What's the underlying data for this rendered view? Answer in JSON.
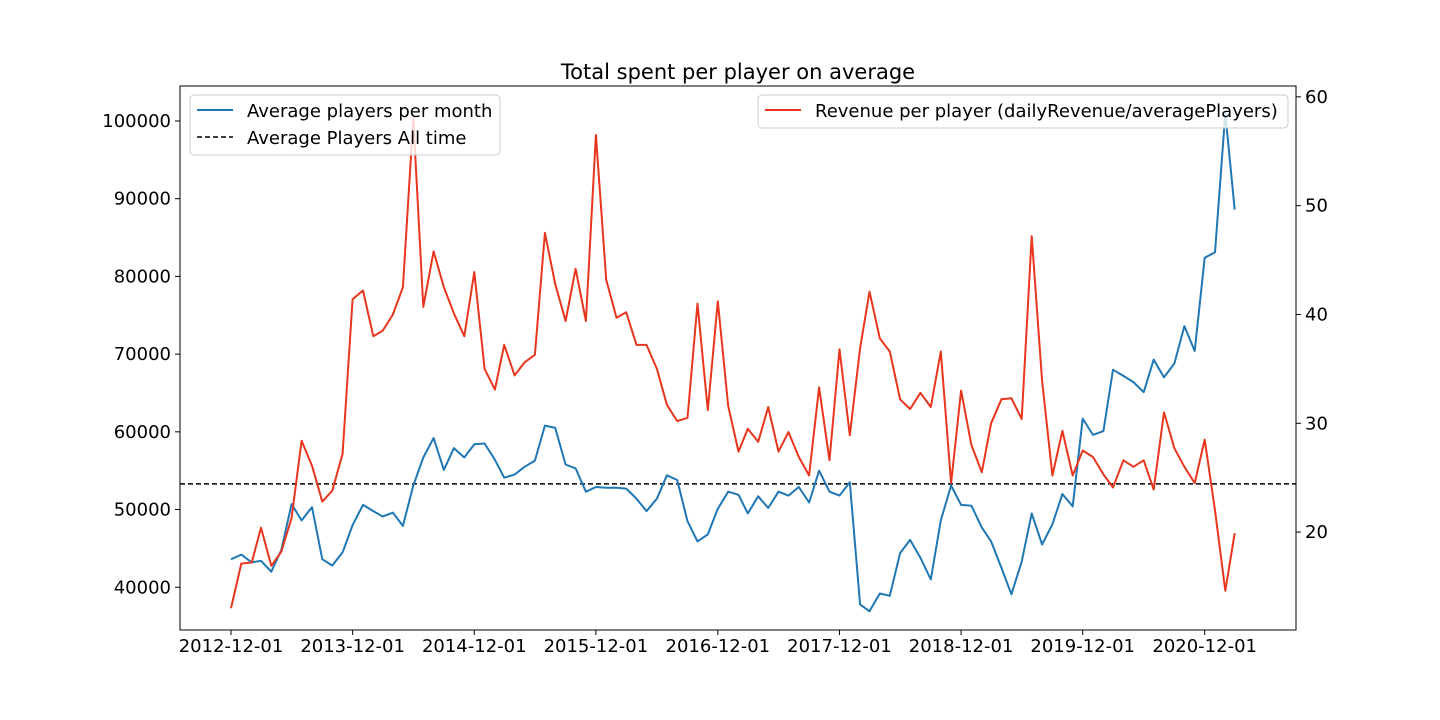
{
  "chart_data": {
    "type": "line",
    "title": "Total spent per player on average",
    "x_axis": {
      "tick_labels": [
        "2012-12-01",
        "2013-12-01",
        "2014-12-01",
        "2015-12-01",
        "2016-12-01",
        "2017-12-01",
        "2018-12-01",
        "2019-12-01",
        "2020-12-01"
      ],
      "start": "2012-12-01",
      "end": "2021-04-01",
      "frequency": "monthly"
    },
    "y_axis_left": {
      "ylim": [
        34500,
        104500
      ],
      "ticks": [
        40000,
        50000,
        60000,
        70000,
        80000,
        90000,
        100000
      ]
    },
    "y_axis_right": {
      "ylim": [
        11,
        61
      ],
      "ticks": [
        20,
        30,
        40,
        50,
        60
      ]
    },
    "series": [
      {
        "name": "Average players per month",
        "axis": "left",
        "color": "#1f77b4",
        "values": [
          43600,
          44200,
          43200,
          43400,
          42000,
          44800,
          50700,
          48600,
          50300,
          43600,
          42800,
          44500,
          48000,
          50600,
          49800,
          49100,
          49600,
          47900,
          53100,
          56700,
          59200,
          55100,
          57900,
          56700,
          58400,
          58500,
          56400,
          54100,
          54500,
          55500,
          56300,
          60800,
          60500,
          55800,
          55300,
          52300,
          52900,
          52800,
          52800,
          52700,
          51400,
          49800,
          51400,
          54400,
          53800,
          48500,
          45900,
          46800,
          50100,
          52300,
          51900,
          49500,
          51700,
          50200,
          52300,
          51800,
          52900,
          50900,
          55000,
          52300,
          51800,
          53500,
          37800,
          36900,
          39200,
          38900,
          44400,
          46100,
          43800,
          41000,
          48600,
          53100,
          50600,
          50500,
          47700,
          45900,
          42500,
          39100,
          43300,
          49500,
          45500,
          48100,
          52000,
          50400,
          61700,
          59600,
          60100,
          68000,
          67200,
          66400,
          65100,
          69300,
          67000,
          68800,
          73600,
          70400,
          82400,
          83100,
          101000,
          88600
        ]
      },
      {
        "name": "Revenue per player (dailyRevenue/averagePlayers)",
        "axis": "right",
        "color": "#e8361e",
        "values": [
          13.0,
          17.1,
          17.2,
          20.4,
          16.9,
          18.2,
          21.3,
          28.4,
          26.1,
          22.8,
          23.8,
          27.2,
          41.4,
          42.2,
          38.0,
          38.5,
          40.0,
          42.5,
          58.0,
          40.7,
          45.8,
          42.5,
          40.1,
          38.0,
          43.9,
          35.0,
          33.1,
          37.2,
          34.4,
          35.6,
          36.3,
          47.5,
          42.8,
          39.4,
          44.2,
          39.4,
          56.5,
          43.2,
          39.7,
          40.2,
          37.2,
          37.2,
          35.0,
          31.7,
          30.2,
          30.5,
          41.0,
          31.2,
          41.2,
          31.6,
          27.4,
          29.5,
          28.3,
          31.5,
          27.4,
          29.2,
          26.9,
          25.2,
          33.3,
          26.6,
          36.8,
          28.9,
          36.9,
          42.1,
          37.8,
          36.6,
          32.2,
          31.3,
          32.8,
          31.5,
          36.6,
          24.5,
          33.0,
          28.0,
          25.5,
          30.0,
          32.2,
          32.3,
          30.4,
          47.2,
          33.9,
          25.2,
          29.3,
          25.2,
          27.5,
          26.9,
          25.3,
          24.1,
          26.6,
          26.0,
          26.6,
          23.9,
          31.0,
          27.7,
          26.0,
          24.5,
          28.5,
          22.0,
          14.6,
          19.9
        ]
      }
    ],
    "reference_lines": [
      {
        "name": "Average Players All time",
        "axis": "left",
        "value": 53300,
        "style": "dashed",
        "color": "#000000"
      }
    ],
    "legends": [
      {
        "placement": "top-left",
        "entries": [
          "Average players per month",
          "Average Players All time"
        ]
      },
      {
        "placement": "top-right",
        "entries": [
          "Revenue per player (dailyRevenue/averagePlayers)"
        ]
      }
    ],
    "grid": false
  }
}
